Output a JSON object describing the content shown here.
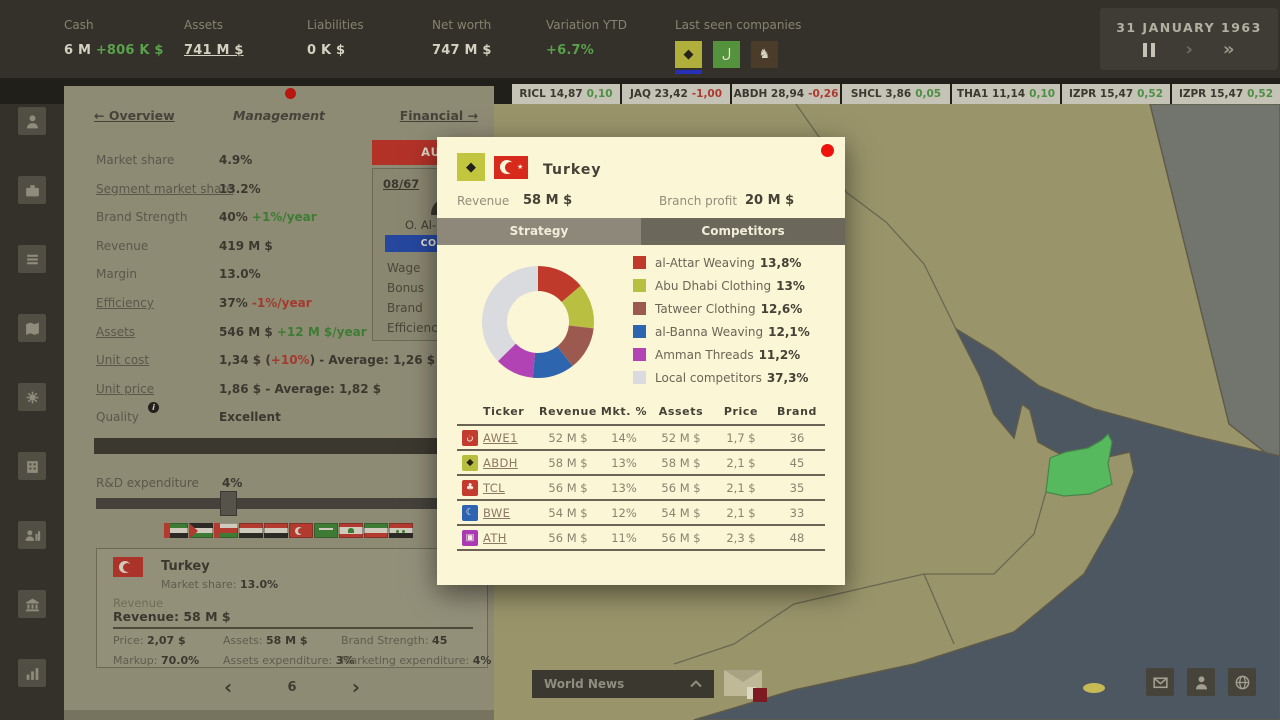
{
  "top_bar": {
    "stats": [
      {
        "label": "Cash",
        "value": "6 M",
        "suffix": "+806 K $",
        "suffix_color": "green"
      },
      {
        "label": "Assets",
        "value": "741 M $",
        "underline": true
      },
      {
        "label": "Liabilities",
        "value": "0 K $"
      },
      {
        "label": "Net worth",
        "value": "747 M $"
      },
      {
        "label": "Variation YTD",
        "value": "+6.7%",
        "value_color": "green"
      }
    ],
    "last_seen_label": "Last seen companies",
    "companies": [
      {
        "name": "abdh",
        "glyph": "◆",
        "bg": "#b0af3c",
        "glyph_color": "#262419",
        "selected": true
      },
      {
        "name": "company-2",
        "glyph": "ل",
        "bg": "#55923d",
        "glyph_color": "#e8e4d4"
      },
      {
        "name": "company-3",
        "glyph": "♞",
        "bg": "#4a3c28",
        "glyph_color": "#d8d4c4"
      }
    ],
    "date": "31 JANUARY 1963"
  },
  "ticker": [
    {
      "symbol": "RICL",
      "price": "14,87",
      "change": "0,10",
      "dir": "up"
    },
    {
      "symbol": "JAQ",
      "price": "23,42",
      "change": "-1,00",
      "dir": "down"
    },
    {
      "symbol": "ABDH",
      "price": "28,94",
      "change": "-0,26",
      "dir": "down"
    },
    {
      "symbol": "SHCL",
      "price": "3,86",
      "change": "0,05",
      "dir": "up"
    },
    {
      "symbol": "THA1",
      "price": "11,14",
      "change": "0,10",
      "dir": "up"
    },
    {
      "symbol": "IZPR",
      "price": "15,47",
      "change": "0,52",
      "dir": "up"
    },
    {
      "symbol": "IZPR",
      "price": "15,47",
      "change": "0,52",
      "dir": "up"
    }
  ],
  "sidebar": [
    "profile",
    "company",
    "reports",
    "map",
    "research",
    "production",
    "staff",
    "finance",
    "statistics"
  ],
  "panel": {
    "tabs": {
      "overview": "← Overview",
      "management": "Management",
      "financial": "Financial →"
    },
    "stats": [
      {
        "key": "market-share",
        "label": "Market share",
        "value": "4.9%"
      },
      {
        "key": "segment-market-share",
        "label": "Segment market share",
        "value": "13.2%",
        "link": true
      },
      {
        "key": "brand-strength",
        "label": "Brand Strength",
        "value": "40%",
        "suffix": "+1%/year",
        "suffix_color": "green"
      },
      {
        "key": "revenue",
        "label": "Revenue",
        "value": "419 M $"
      },
      {
        "key": "margin",
        "label": "Margin",
        "value": "13.0%"
      },
      {
        "key": "efficiency",
        "label": "Efficiency",
        "value": "37%",
        "suffix": "-1%/year",
        "suffix_color": "red",
        "link": true
      },
      {
        "key": "assets",
        "label": "Assets",
        "value": "546 M $",
        "suffix": "+12 M $/year",
        "suffix_color": "green",
        "link": true
      },
      {
        "key": "unit-cost",
        "label": "Unit cost",
        "value": "1,34 $ (",
        "mid": "+10%",
        "mid_color": "red",
        "tail": ") - Average: 1,26 $",
        "link": true
      },
      {
        "key": "unit-price",
        "label": "Unit price",
        "value": "1,86 $",
        "tail": " - Average: 1,82 $",
        "link": true
      },
      {
        "key": "quality",
        "label": "Quality",
        "value": "Excellent",
        "info": true
      }
    ],
    "autopilot_label": "AUTOPILOT",
    "manager": {
      "date": "08/67",
      "name": "O. Al-R",
      "stance": "CONSERVATIVE",
      "items": [
        "Wage",
        "Bonus",
        "Brand",
        "Efficiency"
      ]
    },
    "rnd": {
      "label": "R&D expenditure",
      "value": "4%"
    },
    "flags": [
      "uae",
      "palestine",
      "oman",
      "iraq",
      "yemen",
      "turkey",
      "saudi-arabia",
      "lebanon",
      "iran",
      "syria"
    ],
    "country_box": {
      "country": "Turkey",
      "market_share_label": "Market share: ",
      "market_share": "13.0%",
      "revenue_caption": "Revenue",
      "revenue_label": "Revenue: ",
      "revenue": "58 M $",
      "fields": [
        {
          "label": "Price: ",
          "value": "2,07 $"
        },
        {
          "label": "Assets: ",
          "value": "58 M $"
        },
        {
          "label": "Brand Strength: ",
          "value": "45"
        },
        {
          "label": "Markup: ",
          "value": "70.0%"
        },
        {
          "label": "Assets expenditure: ",
          "value": "3%"
        },
        {
          "label": "Marketing expenditure: ",
          "value": "4%"
        }
      ]
    },
    "page": "6"
  },
  "modal": {
    "country": "Turkey",
    "revenue_label": "Revenue",
    "revenue": "58 M $",
    "branch_profit_label": "Branch profit",
    "branch_profit": "20 M $",
    "tabs": [
      {
        "label": "Strategy",
        "key": "strategy"
      },
      {
        "label": "Competitors",
        "key": "competitors",
        "active": true
      }
    ],
    "chart_data": {
      "type": "pie",
      "donut": true,
      "labels": [
        "al-Attar Weaving",
        "Abu Dhabi Clothing",
        "Tatweer Clothing",
        "al-Banna Weaving",
        "Amman Threads",
        "Local competitors"
      ],
      "values": [
        13.8,
        13,
        12.6,
        12.1,
        11.2,
        37.3
      ],
      "display_values": [
        "13,8%",
        "13%",
        "12,6%",
        "12,1%",
        "11,2%",
        "37,3%"
      ],
      "colors": [
        "#c03a2b",
        "#b9bf40",
        "#9b5950",
        "#2d66af",
        "#b143b4",
        "#dadbdf"
      ],
      "legend_position": "right"
    },
    "table": {
      "headers": [
        "Ticker",
        "Revenue",
        "Mkt. %",
        "Assets",
        "Price",
        "Brand"
      ],
      "rows": [
        {
          "ticker": "AWE1",
          "revenue": "52 M $",
          "mkt": "14%",
          "assets": "52 M $",
          "price": "1,7 $",
          "brand": "36",
          "icon_bg": "#c23b2e",
          "icon_glyph": "ن",
          "icon_color": "#f4efdc"
        },
        {
          "ticker": "ABDH",
          "revenue": "58 M $",
          "mkt": "13%",
          "assets": "58 M $",
          "price": "2,1 $",
          "brand": "45",
          "icon_bg": "#b9bd3e",
          "icon_glyph": "◆",
          "icon_color": "#262419"
        },
        {
          "ticker": "TCL",
          "revenue": "56 M $",
          "mkt": "13%",
          "assets": "56 M $",
          "price": "2,1 $",
          "brand": "35",
          "icon_bg": "#c23b2e",
          "icon_glyph": "♣",
          "icon_color": "#f4efdc"
        },
        {
          "ticker": "BWE",
          "revenue": "54 M $",
          "mkt": "12%",
          "assets": "54 M $",
          "price": "2,1 $",
          "brand": "33",
          "icon_bg": "#2d63b0",
          "icon_glyph": "☾",
          "icon_color": "#f4efdc"
        },
        {
          "ticker": "ATH",
          "revenue": "56 M $",
          "mkt": "11%",
          "assets": "56 M $",
          "price": "2,3 $",
          "brand": "48",
          "icon_bg": "#a93ab3",
          "icon_glyph": "▣",
          "icon_color": "#f4efdc"
        }
      ]
    }
  },
  "footer": {
    "world_news": "World News"
  }
}
